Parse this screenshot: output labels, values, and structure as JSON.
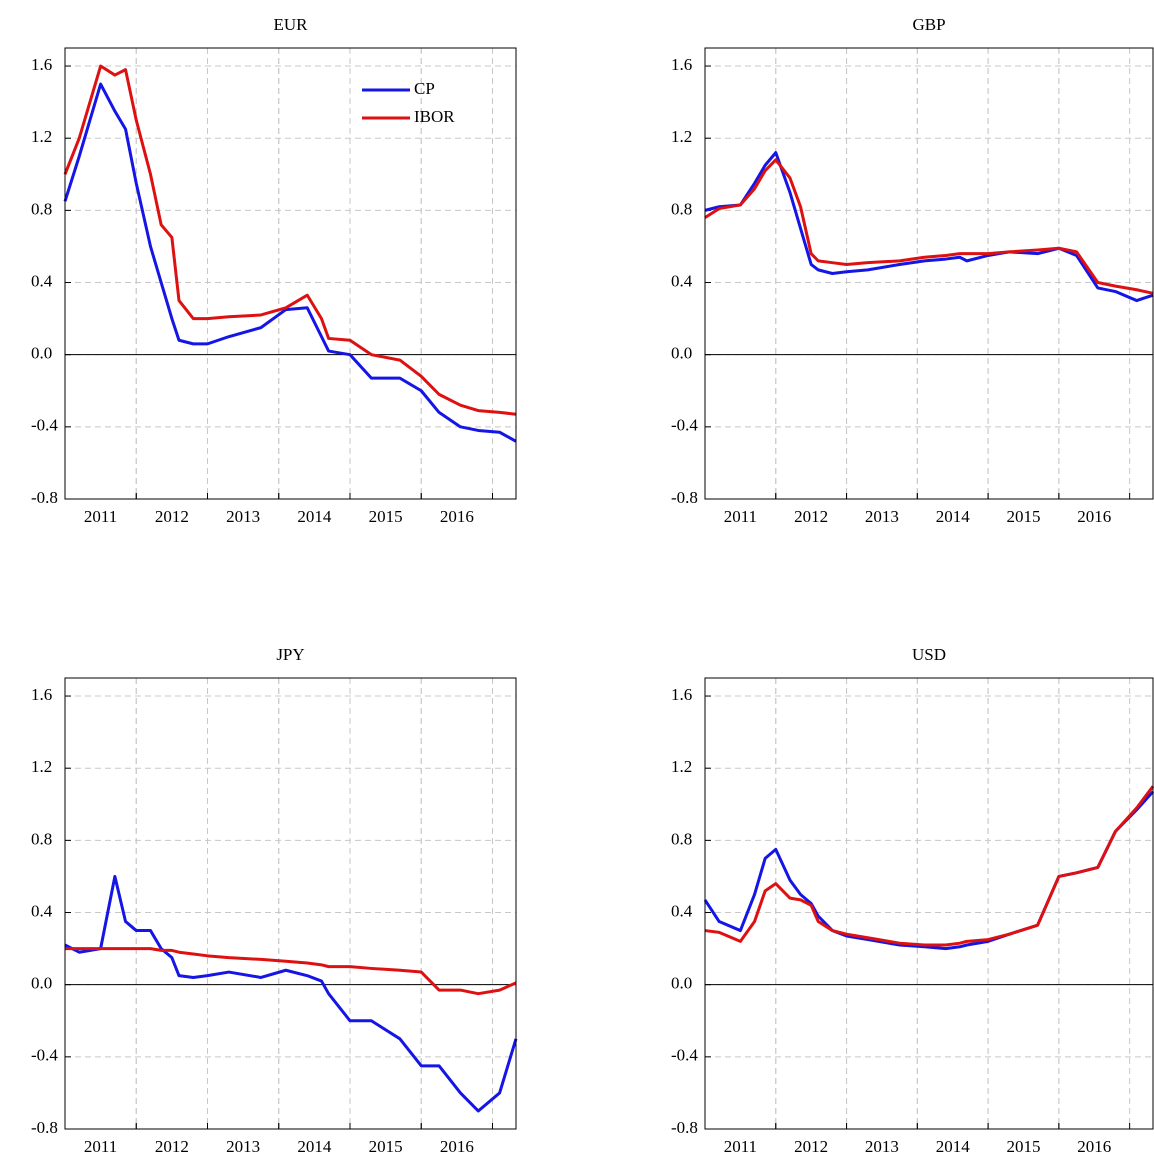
{
  "chart_data": [
    {
      "type": "line",
      "title": "EUR",
      "x": [
        2011.0,
        2011.2,
        2011.5,
        2011.7,
        2011.85,
        2012.0,
        2012.2,
        2012.35,
        2012.5,
        2012.6,
        2012.8,
        2013.0,
        2013.3,
        2013.75,
        2014.1,
        2014.4,
        2014.6,
        2014.7,
        2015.0,
        2015.3,
        2015.7,
        2016.0,
        2016.25,
        2016.55,
        2016.8,
        2017.1,
        2017.33
      ],
      "xlim": [
        2011,
        2017.33
      ],
      "xticks": [
        2011,
        2012,
        2013,
        2014,
        2015,
        2016
      ],
      "ylim": [
        -0.8,
        1.7
      ],
      "yticks": [
        1.6,
        1.2,
        0.8,
        0.4,
        {
          "value": 0,
          "label": "0.0"
        },
        -0.4,
        -0.8
      ],
      "grid": true,
      "zero_line": true,
      "legend": "upper right",
      "series": [
        {
          "name": "CP",
          "color": "#1515e6",
          "values": [
            0.85,
            1.1,
            1.5,
            1.35,
            1.25,
            0.95,
            0.6,
            0.4,
            0.2,
            0.08,
            0.06,
            0.06,
            0.1,
            0.15,
            0.25,
            0.26,
            0.1,
            0.02,
            0.0,
            -0.13,
            -0.13,
            -0.2,
            -0.32,
            -0.4,
            -0.42,
            -0.43,
            -0.48
          ]
        },
        {
          "name": "IBOR",
          "color": "#dd1111",
          "values": [
            1.0,
            1.2,
            1.6,
            1.55,
            1.58,
            1.3,
            1.0,
            0.72,
            0.65,
            0.3,
            0.2,
            0.2,
            0.21,
            0.22,
            0.26,
            0.33,
            0.2,
            0.09,
            0.08,
            0.0,
            -0.03,
            -0.12,
            -0.22,
            -0.28,
            -0.31,
            -0.32,
            -0.33
          ]
        }
      ]
    },
    {
      "type": "line",
      "title": "GBP",
      "x": [
        2011.0,
        2011.2,
        2011.5,
        2011.7,
        2011.85,
        2012.0,
        2012.2,
        2012.35,
        2012.5,
        2012.6,
        2012.8,
        2013.0,
        2013.3,
        2013.75,
        2014.1,
        2014.4,
        2014.6,
        2014.7,
        2015.0,
        2015.3,
        2015.7,
        2016.0,
        2016.25,
        2016.55,
        2016.8,
        2017.1,
        2017.33
      ],
      "xlim": [
        2011,
        2017.33
      ],
      "xticks": [
        2011,
        2012,
        2013,
        2014,
        2015,
        2016
      ],
      "ylim": [
        -0.8,
        1.7
      ],
      "yticks": [
        1.6,
        1.2,
        0.8,
        0.4,
        {
          "value": 0,
          "label": "0.0"
        },
        -0.4,
        -0.8
      ],
      "grid": true,
      "zero_line": true,
      "series": [
        {
          "color": "#1515e6",
          "values": [
            0.8,
            0.82,
            0.83,
            0.95,
            1.05,
            1.12,
            0.9,
            0.7,
            0.5,
            0.47,
            0.45,
            0.46,
            0.47,
            0.5,
            0.52,
            0.53,
            0.54,
            0.52,
            0.55,
            0.57,
            0.56,
            0.59,
            0.55,
            0.37,
            0.35,
            0.3,
            0.33
          ]
        },
        {
          "color": "#dd1111",
          "values": [
            0.76,
            0.81,
            0.83,
            0.92,
            1.02,
            1.08,
            0.98,
            0.82,
            0.56,
            0.52,
            0.51,
            0.5,
            0.51,
            0.52,
            0.54,
            0.55,
            0.56,
            0.56,
            0.56,
            0.57,
            0.58,
            0.59,
            0.57,
            0.4,
            0.38,
            0.36,
            0.34
          ]
        }
      ]
    },
    {
      "type": "line",
      "title": "JPY",
      "x": [
        2011.0,
        2011.2,
        2011.5,
        2011.7,
        2011.85,
        2012.0,
        2012.2,
        2012.35,
        2012.5,
        2012.6,
        2012.8,
        2013.0,
        2013.3,
        2013.75,
        2014.1,
        2014.4,
        2014.6,
        2014.7,
        2015.0,
        2015.3,
        2015.7,
        2016.0,
        2016.25,
        2016.55,
        2016.8,
        2017.1,
        2017.33
      ],
      "xlim": [
        2011,
        2017.33
      ],
      "xticks": [
        2011,
        2012,
        2013,
        2014,
        2015,
        2016
      ],
      "ylim": [
        -0.8,
        1.7
      ],
      "yticks": [
        1.6,
        1.2,
        0.8,
        0.4,
        {
          "value": 0,
          "label": "0.0"
        },
        -0.4,
        -0.8
      ],
      "grid": true,
      "zero_line": true,
      "series": [
        {
          "color": "#1515e6",
          "values": [
            0.22,
            0.18,
            0.2,
            0.6,
            0.35,
            0.3,
            0.3,
            0.2,
            0.15,
            0.05,
            0.04,
            0.05,
            0.07,
            0.04,
            0.08,
            0.05,
            0.02,
            -0.05,
            -0.2,
            -0.2,
            -0.3,
            -0.45,
            -0.45,
            -0.6,
            -0.7,
            -0.6,
            -0.3
          ]
        },
        {
          "color": "#dd1111",
          "values": [
            0.2,
            0.2,
            0.2,
            0.2,
            0.2,
            0.2,
            0.2,
            0.19,
            0.19,
            0.18,
            0.17,
            0.16,
            0.15,
            0.14,
            0.13,
            0.12,
            0.11,
            0.1,
            0.1,
            0.09,
            0.08,
            0.07,
            -0.03,
            -0.03,
            -0.05,
            -0.03,
            0.01
          ]
        }
      ]
    },
    {
      "type": "line",
      "title": "USD",
      "x": [
        2011.0,
        2011.2,
        2011.5,
        2011.7,
        2011.85,
        2012.0,
        2012.2,
        2012.35,
        2012.5,
        2012.6,
        2012.8,
        2013.0,
        2013.3,
        2013.75,
        2014.1,
        2014.4,
        2014.6,
        2014.7,
        2015.0,
        2015.3,
        2015.7,
        2016.0,
        2016.25,
        2016.55,
        2016.8,
        2017.1,
        2017.33
      ],
      "xlim": [
        2011,
        2017.33
      ],
      "xticks": [
        2011,
        2012,
        2013,
        2014,
        2015,
        2016
      ],
      "ylim": [
        -0.8,
        1.7
      ],
      "yticks": [
        1.6,
        1.2,
        0.8,
        0.4,
        {
          "value": 0,
          "label": "0.0"
        },
        -0.4,
        -0.8
      ],
      "grid": true,
      "zero_line": true,
      "series": [
        {
          "color": "#1515e6",
          "values": [
            0.47,
            0.35,
            0.3,
            0.5,
            0.7,
            0.75,
            0.58,
            0.5,
            0.45,
            0.38,
            0.3,
            0.27,
            0.25,
            0.22,
            0.21,
            0.2,
            0.21,
            0.22,
            0.24,
            0.28,
            0.33,
            0.6,
            0.62,
            0.65,
            0.85,
            0.97,
            1.07
          ]
        },
        {
          "color": "#dd1111",
          "values": [
            0.3,
            0.29,
            0.24,
            0.35,
            0.52,
            0.56,
            0.48,
            0.47,
            0.44,
            0.35,
            0.3,
            0.28,
            0.26,
            0.23,
            0.22,
            0.22,
            0.23,
            0.24,
            0.25,
            0.28,
            0.33,
            0.6,
            0.62,
            0.65,
            0.85,
            0.98,
            1.1
          ]
        }
      ]
    }
  ]
}
